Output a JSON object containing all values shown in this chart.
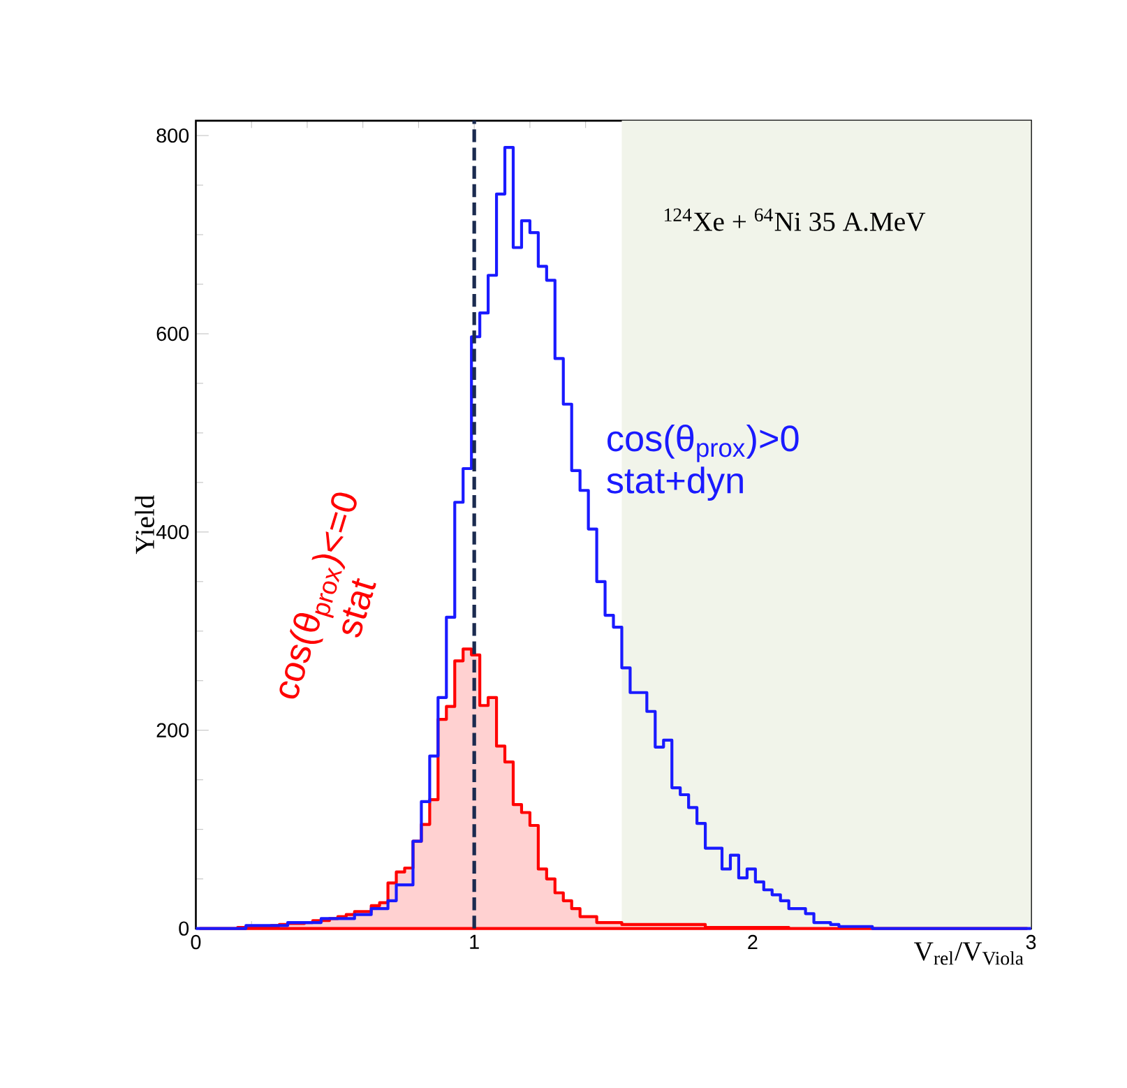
{
  "chart_data": {
    "type": "histogram",
    "xlabel": "V$_{rel}$/V$_{Viola}$",
    "ylabel": "Yield",
    "annotations": [
      "$^{124}$Xe + $^{64}$Ni  35 A.MeV"
    ],
    "xlim": [
      0,
      3
    ],
    "ylim": [
      0,
      815
    ],
    "xticks": [
      0,
      1,
      2,
      3
    ],
    "yticks": [
      0,
      200,
      400,
      600,
      800
    ],
    "bins": [
      0,
      0.03,
      0.06,
      0.09,
      0.12,
      0.15,
      0.18,
      0.21,
      0.24,
      0.27,
      0.3,
      0.33,
      0.36,
      0.39,
      0.42,
      0.45,
      0.48,
      0.51,
      0.54,
      0.57,
      0.6,
      0.63,
      0.66,
      0.69,
      0.72,
      0.75,
      0.78,
      0.81,
      0.84,
      0.87,
      0.9,
      0.93,
      0.96,
      0.99,
      1.02,
      1.05,
      1.08,
      1.11,
      1.14,
      1.17,
      1.2,
      1.23,
      1.26,
      1.29,
      1.32,
      1.35,
      1.38,
      1.41,
      1.44,
      1.47,
      1.5,
      1.53,
      1.56,
      1.59,
      1.62,
      1.65,
      1.68,
      1.71,
      1.74,
      1.77,
      1.8,
      1.83,
      1.86,
      1.89,
      1.92,
      1.95,
      1.98,
      2.01,
      2.04,
      2.07,
      2.1,
      2.13,
      2.16,
      2.19,
      2.22,
      2.25,
      2.28,
      2.31,
      2.34,
      2.37,
      2.4,
      2.43,
      2.46,
      2.49,
      2.52,
      2.55,
      2.58,
      2.61,
      2.64,
      2.67,
      2.7,
      2.73,
      2.76,
      2.79,
      2.82,
      2.85,
      2.88,
      2.91,
      2.94,
      2.97,
      3
    ],
    "series": [
      {
        "name": "cos(θ$_{prox}$)>0 stat+dyn",
        "color": "#1a1aff",
        "values": [
          0,
          0,
          0,
          0,
          0,
          0,
          3,
          3,
          3,
          3,
          3,
          6,
          6,
          6,
          6,
          10,
          10,
          10,
          10,
          14,
          14,
          20,
          20,
          28,
          44,
          44,
          88,
          128,
          174,
          233,
          314,
          430,
          464,
          597,
          621,
          659,
          741,
          788,
          687,
          714,
          702,
          668,
          654,
          575,
          529,
          462,
          442,
          403,
          350,
          316,
          304,
          263,
          238,
          238,
          219,
          183,
          190,
          142,
          135,
          122,
          106,
          81,
          81,
          60,
          74,
          51,
          60,
          47,
          39,
          34,
          28,
          20,
          20,
          15,
          6,
          6,
          4,
          2,
          2,
          2,
          2,
          0,
          0,
          0,
          0,
          0,
          0,
          0,
          0,
          0,
          0,
          0,
          0,
          0,
          0,
          0,
          0,
          0,
          0,
          0
        ]
      },
      {
        "name": "cos(θ$_{prox}$)<=0 stat",
        "type": "area",
        "color": "#ff0000",
        "x": [
          0.015,
          0.045,
          0.075,
          0.105,
          0.135,
          0.165,
          0.195,
          0.225,
          0.255,
          0.285,
          0.315,
          0.345,
          0.375,
          0.405,
          0.435,
          0.465,
          0.495,
          0.525,
          0.555,
          0.585,
          0.615,
          0.645,
          0.675,
          0.705,
          0.735,
          0.765,
          0.795,
          0.825,
          0.855,
          0.885,
          0.915,
          0.945,
          0.975,
          1.005,
          1.035,
          1.065,
          1.095,
          1.125,
          1.155,
          1.185,
          1.215,
          1.245,
          1.275,
          1.305,
          1.335,
          1.365,
          1.395,
          1.425,
          1.455,
          1.485,
          1.515,
          1.545,
          1.575,
          1.605,
          1.635,
          1.665,
          1.695,
          1.725,
          1.755,
          1.785,
          1.815,
          1.845,
          1.875,
          1.905,
          1.935,
          1.965,
          1.995,
          2.025,
          2.055,
          2.085,
          2.115,
          2.145,
          2.175,
          2.205,
          2.235,
          2.265,
          2.295,
          2.325,
          2.355,
          2.385,
          2.415,
          2.445,
          2.475,
          2.505,
          2.535,
          2.565,
          2.595,
          2.625,
          2.655,
          2.685,
          2.715,
          2.745,
          2.775,
          2.805,
          2.835,
          2.865,
          2.895,
          2.925,
          2.955,
          2.985
        ],
        "values": [
          0,
          0,
          0,
          0,
          0,
          1,
          1,
          2,
          2,
          3,
          4,
          5,
          5,
          6,
          8,
          8,
          10,
          12,
          14,
          17,
          17,
          23,
          26,
          46,
          57,
          61,
          88,
          105,
          130,
          211,
          224,
          270,
          282,
          276,
          225,
          233,
          184,
          168,
          125,
          117,
          104,
          60,
          50,
          36,
          28,
          20,
          12,
          12,
          6,
          6,
          6,
          4,
          4,
          4,
          4,
          4,
          4,
          4,
          4,
          4,
          4,
          1,
          1,
          1,
          1,
          1,
          1,
          1,
          1,
          1,
          1,
          0,
          0,
          0,
          0,
          0,
          0,
          0,
          0,
          0,
          0,
          0,
          0,
          0,
          0,
          0,
          0,
          0,
          0,
          0,
          0,
          0,
          0,
          0,
          0,
          0,
          0,
          0,
          0,
          0
        ]
      }
    ],
    "ref_lines": [
      {
        "axis": "x",
        "value": 1,
        "color": "#1b2b50",
        "line_style": "dashed"
      }
    ],
    "bands": [
      {
        "axis": "x",
        "from": 1.53,
        "to": 3,
        "color": "#f1f4ea"
      }
    ]
  }
}
